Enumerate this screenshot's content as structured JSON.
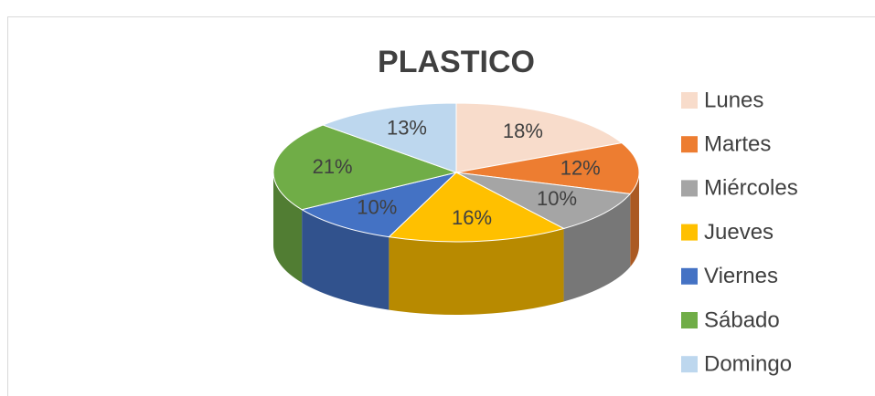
{
  "chart_data": {
    "type": "pie",
    "title": "PLASTICO",
    "categories": [
      "Lunes",
      "Martes",
      "Miércoles",
      "Jueves",
      "Viernes",
      "Sábado",
      "Domingo"
    ],
    "values": [
      18,
      12,
      10,
      16,
      10,
      21,
      13
    ],
    "value_labels": [
      "18%",
      "12%",
      "10%",
      "16%",
      "10%",
      "21%",
      "13%"
    ],
    "colors": [
      "#f8dccb",
      "#ed7d31",
      "#a5a5a5",
      "#ffc000",
      "#4472c4",
      "#70ad47",
      "#bdd7ee"
    ],
    "legend": "right"
  }
}
